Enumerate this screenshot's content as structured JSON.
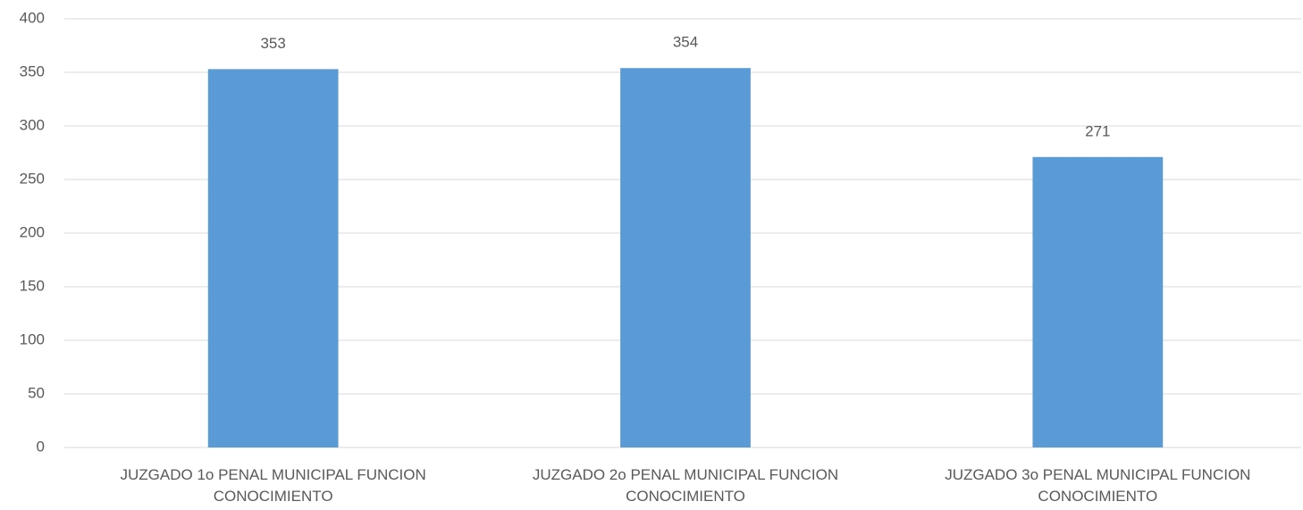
{
  "chart_data": {
    "type": "bar",
    "categories": [
      "JUZGADO 1o PENAL MUNICIPAL FUNCION CONOCIMIENTO",
      "JUZGADO 2o PENAL MUNICIPAL FUNCION CONOCIMIENTO",
      "JUZGADO 3o PENAL MUNICIPAL FUNCION CONOCIMIENTO"
    ],
    "values": [
      353,
      354,
      271
    ],
    "color": "#5b9bd5",
    "ylim": [
      0,
      400
    ],
    "yticks": [
      0,
      50,
      100,
      150,
      200,
      250,
      300,
      350,
      400
    ],
    "grid": true
  }
}
